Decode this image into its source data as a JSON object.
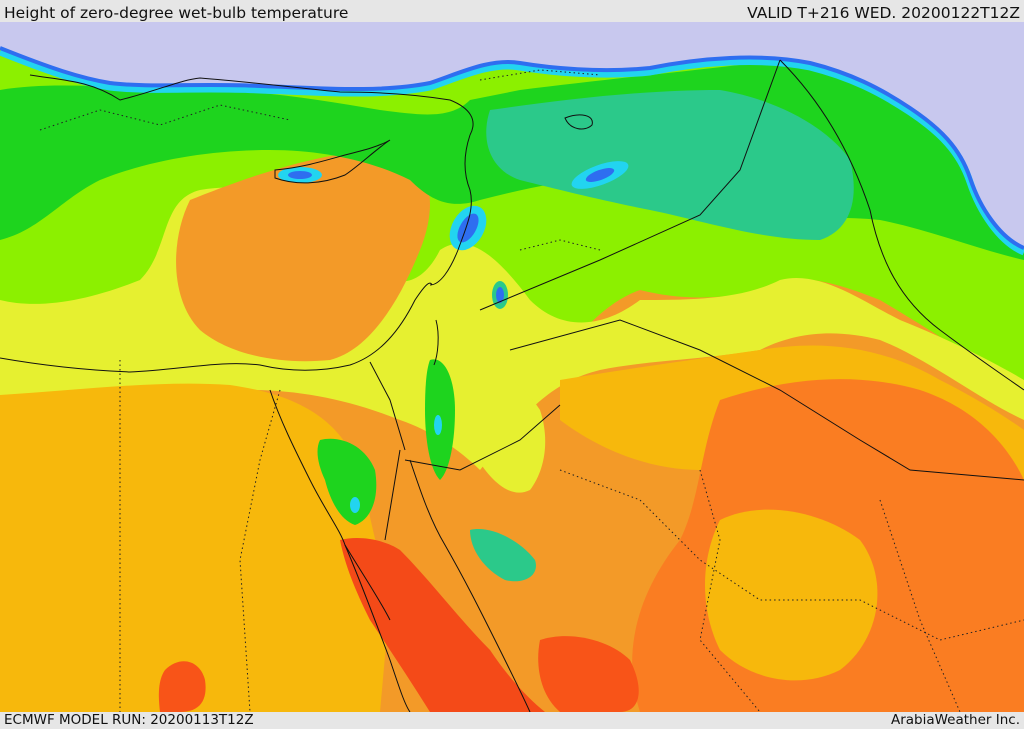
{
  "header": {
    "title": "Height of zero-degree wet-bulb temperature",
    "valid_label": "VALID T+216 WED. 20200122T12Z"
  },
  "footer": {
    "model_run": "ECMWF MODEL RUN: 20200113T12Z",
    "credit": "ArabiaWeather Inc."
  },
  "map": {
    "palette": {
      "snow": "#c8c8ee",
      "cold_blue": "#2020d8",
      "blue": "#2e6ef0",
      "cyan": "#22d4f0",
      "teal": "#2bc98a",
      "green": "#1ed41e",
      "lime": "#8cf000",
      "yellow": "#e6f030",
      "amber": "#f7b80c",
      "orange": "#f39a28",
      "dark_orange": "#fa7d22",
      "red_orange": "#f85418",
      "sea_red": "#f44a18"
    },
    "boundary_color": "#111111"
  }
}
